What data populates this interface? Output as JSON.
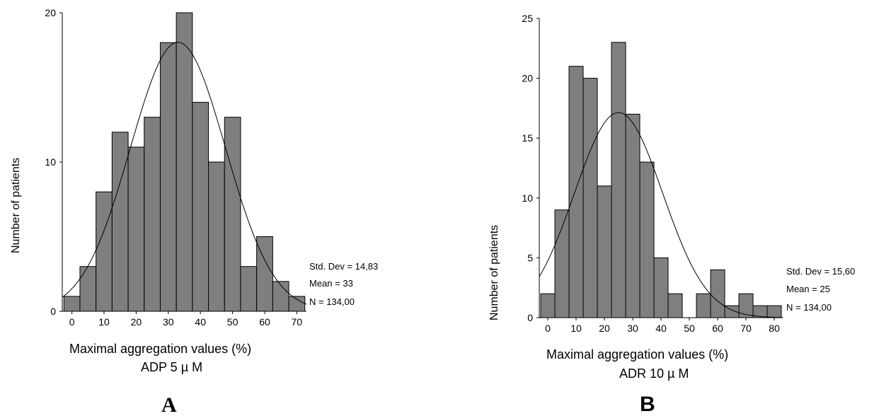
{
  "chart_data": [
    {
      "type": "bar",
      "panel_label": "A",
      "xlabel": "Maximal aggregation values (%)",
      "xlabel2": "ADP 5 µ M",
      "ylabel": "Number of patients",
      "bin_start": -2.5,
      "bin_width": 5,
      "values": [
        1,
        3,
        8,
        12,
        11,
        13,
        18,
        20,
        14,
        10,
        13,
        3,
        5,
        2,
        1
      ],
      "xticks": [
        0,
        10,
        20,
        30,
        40,
        50,
        60,
        70
      ],
      "yticks": [
        0,
        10,
        20
      ],
      "xlim": [
        -3,
        73
      ],
      "ylim": [
        0,
        20
      ],
      "stats": [
        "Std. Dev = 14,83",
        "Mean = 33",
        "N = 134,00"
      ],
      "normal_curve": {
        "mean": 33,
        "sd": 14.83,
        "n": 134
      }
    },
    {
      "type": "bar",
      "panel_label": "B",
      "xlabel": "Maximal aggregation values (%)",
      "xlabel2": "ADR 10 µ M",
      "ylabel": "Number of patients",
      "bin_start": -2.5,
      "bin_width": 5,
      "values": [
        2,
        9,
        21,
        20,
        11,
        23,
        17,
        13,
        5,
        2,
        0,
        2,
        4,
        1,
        2,
        1,
        1
      ],
      "xticks": [
        0,
        10,
        20,
        30,
        40,
        50,
        60,
        70,
        80
      ],
      "yticks": [
        0,
        5,
        10,
        15,
        20,
        25
      ],
      "xlim": [
        -3,
        83
      ],
      "ylim": [
        0,
        25
      ],
      "stats": [
        "Std. Dev = 15,60",
        "Mean = 25",
        "N = 134,00"
      ],
      "normal_curve": {
        "mean": 25,
        "sd": 15.6,
        "n": 134
      }
    }
  ],
  "colors": {
    "bar_fill": "#7f7f7f",
    "bar_stroke": "#000000",
    "curve": "#000000"
  }
}
